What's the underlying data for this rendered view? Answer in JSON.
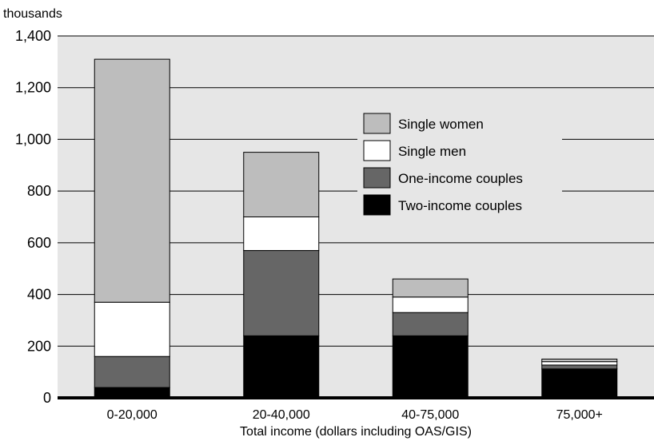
{
  "chart_data": {
    "type": "bar",
    "stacked": true,
    "title": "",
    "ylabel": "thousands",
    "xlabel": "Total income (dollars including OAS/GIS)",
    "categories": [
      "0-20,000",
      "20-40,000",
      "40-75,000",
      "75,000+"
    ],
    "ylim": [
      0,
      1400
    ],
    "yticks": [
      0,
      200,
      400,
      600,
      800,
      1000,
      1200,
      1400
    ],
    "ytick_labels": [
      "0",
      "200",
      "400",
      "600",
      "800",
      "1,000",
      "1,200",
      "1,400"
    ],
    "grid": true,
    "legend_position": "right",
    "series": [
      {
        "name": "Two-income couples",
        "color": "#000000",
        "values": [
          40,
          240,
          240,
          112
        ]
      },
      {
        "name": "One-income couples",
        "color": "#666666",
        "values": [
          120,
          330,
          90,
          15
        ]
      },
      {
        "name": "Single men",
        "color": "#ffffff",
        "values": [
          210,
          130,
          60,
          13
        ]
      },
      {
        "name": "Single women",
        "color": "#bdbdbd",
        "values": [
          940,
          250,
          70,
          10
        ]
      }
    ],
    "legend_order": [
      "Single women",
      "Single men",
      "One-income couples",
      "Two-income couples"
    ],
    "plot_background": "#e6e6e6"
  }
}
